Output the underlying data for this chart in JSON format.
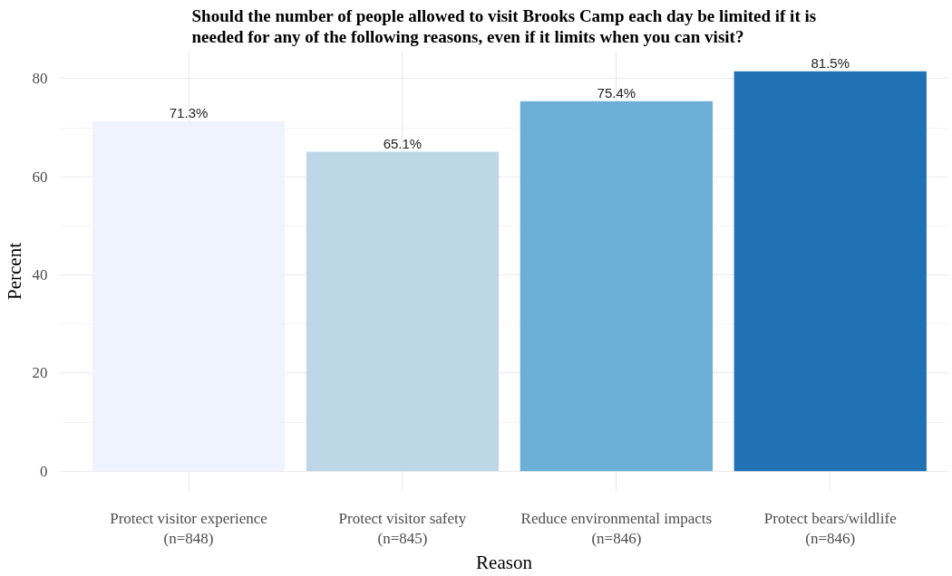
{
  "chart_data": {
    "type": "bar",
    "title": "Should the number of people allowed to visit Brooks Camp each day be limited if it is needed for any of the following reasons, even if it limits when you can visit?",
    "xlabel": "Reason",
    "ylabel": "Percent",
    "categories": [
      "Protect visitor experience\n(n=848)",
      "Protect visitor safety\n(n=845)",
      "Reduce environmental impacts\n(n=846)",
      "Protect bears/wildlife\n(n=846)"
    ],
    "values": [
      71.3,
      65.1,
      75.4,
      81.5
    ],
    "colors": [
      "#eff3ff",
      "#bdd7e7",
      "#6baed6",
      "#2171b5"
    ],
    "value_labels": [
      "71.3%",
      "65.1%",
      "75.4%",
      "81.5%"
    ],
    "ylim": [
      -4.1,
      85.6
    ],
    "yticks": [
      0,
      {
        "value": 10,
        "label": null
      },
      20,
      {
        "value": 30,
        "label": null
      },
      40,
      {
        "value": 50,
        "label": null
      },
      60,
      {
        "value": 70,
        "label": null
      },
      80
    ],
    "grid": true
  }
}
